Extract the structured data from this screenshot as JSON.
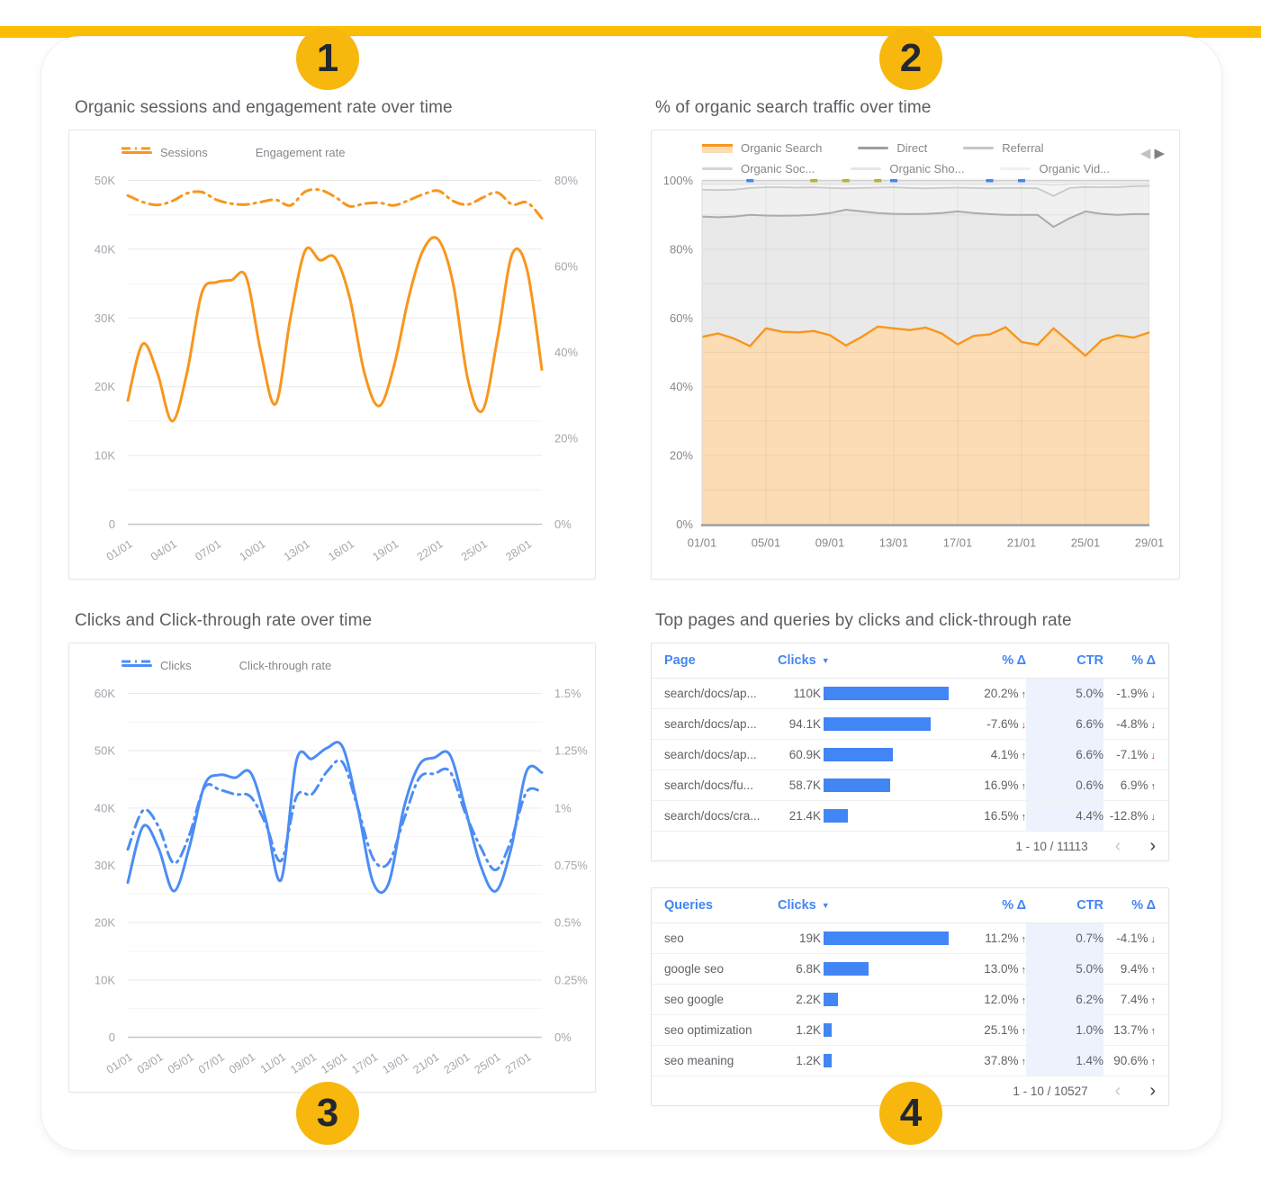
{
  "badges": [
    "1",
    "2",
    "3",
    "4"
  ],
  "colors": {
    "accent_bar_yellow": "#FCBE03",
    "badge_yellow": "#F8B70D",
    "orange": "#F8961D",
    "orange_fill": "#FBDCB5",
    "blue": "#4285F4",
    "line_blue": "#4C8DF5",
    "green_up": "#188038",
    "red_down": "#D93025",
    "ctr_band": "#EDF2FC"
  },
  "icons": {
    "sort_desc": "▼",
    "trend_up": "↑",
    "trend_down": "↓",
    "page_prev": "‹",
    "page_next": "›",
    "chart_prev": "◀",
    "chart_next": "▶"
  },
  "chart_data": [
    {
      "id": "sessions",
      "type": "line",
      "title": "Organic sessions and engagement rate over time",
      "legend": [
        {
          "label": "Sessions",
          "style": "solid"
        },
        {
          "label": "Engagement rate",
          "style": "dashdot"
        }
      ],
      "color": "#F8961D",
      "x_labels": [
        "01/01",
        "02/01",
        "03/01",
        "04/01",
        "05/01",
        "06/01",
        "07/01",
        "08/01",
        "09/01",
        "10/01",
        "11/01",
        "12/01",
        "13/01",
        "14/01",
        "15/01",
        "16/01",
        "17/01",
        "18/01",
        "19/01",
        "20/01",
        "21/01",
        "22/01",
        "23/01",
        "24/01",
        "25/01",
        "26/01",
        "27/01",
        "28/01",
        "29/01"
      ],
      "x_ticks": {
        "labels": [
          "01/01",
          "04/01",
          "07/01",
          "10/01",
          "13/01",
          "16/01",
          "19/01",
          "22/01",
          "25/01",
          "28/01"
        ],
        "days": [
          1,
          4,
          7,
          10,
          13,
          16,
          19,
          22,
          25,
          28
        ]
      },
      "left_axis": {
        "labels": [
          "0",
          "10K",
          "20K",
          "30K",
          "40K",
          "50K"
        ],
        "values": [
          0,
          10000,
          20000,
          30000,
          40000,
          50000
        ],
        "max": 50000
      },
      "right_axis": {
        "labels": [
          "0%",
          "20%",
          "40%",
          "60%",
          "80%"
        ],
        "values": [
          0,
          20,
          40,
          60,
          80
        ],
        "max": 80
      },
      "series": [
        {
          "name": "Sessions",
          "axis": "left",
          "style": "solid",
          "values": [
            18000,
            26200,
            22000,
            15000,
            22000,
            33600,
            35200,
            35500,
            36000,
            25000,
            17500,
            30000,
            39800,
            38400,
            38800,
            33000,
            22000,
            17200,
            23000,
            33000,
            40000,
            41400,
            35000,
            21000,
            16600,
            27000,
            39300,
            37000,
            22500
          ]
        },
        {
          "name": "Engagement rate",
          "axis": "right",
          "style": "dashdot",
          "values": [
            76.5,
            75.0,
            74.3,
            75.2,
            77.0,
            77.3,
            75.5,
            74.6,
            74.4,
            75.0,
            75.5,
            74.2,
            77.4,
            77.8,
            76.2,
            74.0,
            74.6,
            74.8,
            74.2,
            75.4,
            76.8,
            77.6,
            75.2,
            74.4,
            76.0,
            77.2,
            74.4,
            74.9,
            71.2
          ]
        }
      ]
    },
    {
      "id": "traffic",
      "type": "area_stacked_percent",
      "title": "% of organic search traffic over time",
      "legend": [
        {
          "label": "Organic Search",
          "color": "#F8961D",
          "fill": "#FBDCB5"
        },
        {
          "label": "Direct",
          "color": "#9E9E9E"
        },
        {
          "label": "Referral",
          "color": "#C6C6C6"
        },
        {
          "label": "Organic Soc...",
          "color": "#D4D4D4"
        },
        {
          "label": "Organic Sho...",
          "color": "#E6E6E6"
        },
        {
          "label": "Organic Vid...",
          "color": "#F0F0F0"
        }
      ],
      "x_labels": [
        "01/01",
        "02/01",
        "03/01",
        "04/01",
        "05/01",
        "06/01",
        "07/01",
        "08/01",
        "09/01",
        "10/01",
        "11/01",
        "12/01",
        "13/01",
        "14/01",
        "15/01",
        "16/01",
        "17/01",
        "18/01",
        "19/01",
        "20/01",
        "21/01",
        "22/01",
        "23/01",
        "24/01",
        "25/01",
        "26/01",
        "27/01",
        "28/01",
        "29/01"
      ],
      "x_ticks": {
        "labels": [
          "01/01",
          "05/01",
          "09/01",
          "13/01",
          "17/01",
          "21/01",
          "25/01",
          "29/01"
        ],
        "days": [
          1,
          5,
          9,
          13,
          17,
          21,
          25,
          29
        ]
      },
      "y_axis": {
        "labels": [
          "0%",
          "20%",
          "40%",
          "60%",
          "80%",
          "100%"
        ],
        "values": [
          0,
          20,
          40,
          60,
          80,
          100
        ],
        "max": 100
      },
      "series": [
        {
          "name": "Organic Search",
          "line": "#F8961D",
          "fill": "#FBDCB5",
          "width": 2.4,
          "values": [
            54.5,
            55.5,
            54.0,
            51.8,
            57.0,
            56.0,
            55.8,
            56.2,
            55.0,
            52.0,
            54.5,
            57.5,
            57.0,
            56.5,
            57.2,
            55.5,
            52.3,
            54.8,
            55.2,
            57.3,
            53.0,
            52.2,
            57.0,
            53.0,
            49.0,
            53.5,
            55.0,
            54.3,
            55.8
          ]
        },
        {
          "name": "Direct",
          "line": "#ABABAB",
          "fill": "#E9E9E9",
          "width": 2,
          "values": [
            89.5,
            89.3,
            89.5,
            90.0,
            89.8,
            89.7,
            89.8,
            90.0,
            90.5,
            91.5,
            91.0,
            90.5,
            90.3,
            90.2,
            90.3,
            90.5,
            91.0,
            90.5,
            90.2,
            90.0,
            90.0,
            90.0,
            86.5,
            89.0,
            91.0,
            90.3,
            90.0,
            90.2,
            90.2
          ]
        },
        {
          "name": "Referral",
          "line": "#C9C9C9",
          "fill": "#F0F0F0",
          "width": 1.8,
          "values": [
            97.3,
            97.2,
            97.3,
            97.8,
            98.0,
            98.0,
            97.9,
            98.0,
            97.8,
            97.7,
            97.8,
            97.9,
            98.0,
            97.8,
            97.7,
            97.8,
            97.9,
            97.8,
            97.7,
            97.8,
            97.8,
            97.7,
            95.5,
            97.8,
            98.1,
            98.0,
            98.1,
            98.3,
            98.4
          ]
        },
        {
          "name": "Organic Soc...",
          "line": "#DCDCDC",
          "fill": "#F4F4F4",
          "width": 1.4,
          "values": [
            99.0,
            99.0,
            99.0,
            99.0,
            99.0,
            99.0,
            99.0,
            99.0,
            99.0,
            99.0,
            99.0,
            99.0,
            99.0,
            99.0,
            99.0,
            99.0,
            99.0,
            99.0,
            99.0,
            99.0,
            99.0,
            99.0,
            98.7,
            99.0,
            99.0,
            99.0,
            99.0,
            99.0,
            99.0
          ]
        },
        {
          "name": "Organic Sho...",
          "line": "#E7E7E7",
          "fill": "#F8F8F8",
          "width": 1.4,
          "values": [
            99.6,
            99.6,
            99.6,
            99.6,
            99.6,
            99.6,
            99.6,
            99.6,
            99.6,
            99.6,
            99.6,
            99.6,
            99.6,
            99.6,
            99.6,
            99.6,
            99.6,
            99.6,
            99.6,
            99.6,
            99.6,
            99.6,
            99.5,
            99.6,
            99.6,
            99.6,
            99.6,
            99.6,
            99.6
          ]
        },
        {
          "name": "Organic Vid...",
          "line": "#CFCFCF",
          "fill": "#FBFBFB",
          "width": 1.4,
          "values": [
            100,
            100,
            100,
            100,
            100,
            100,
            100,
            100,
            100,
            100,
            100,
            100,
            100,
            100,
            100,
            100,
            100,
            100,
            100,
            100,
            100,
            100,
            100,
            100,
            100,
            100,
            100,
            100,
            100
          ]
        }
      ],
      "markers": [
        {
          "day": 4,
          "color": "#4285F4"
        },
        {
          "day": 13,
          "color": "#4285F4"
        },
        {
          "day": 19,
          "color": "#4285F4"
        },
        {
          "day": 21,
          "color": "#4285F4"
        },
        {
          "day": 8,
          "color": "#B7B32E"
        },
        {
          "day": 10,
          "color": "#B7B32E"
        },
        {
          "day": 12,
          "color": "#B7B32E"
        }
      ]
    },
    {
      "id": "clicks",
      "type": "line",
      "title": "Clicks and Click-through rate over time",
      "legend": [
        {
          "label": "Clicks",
          "style": "solid"
        },
        {
          "label": "Click-through rate",
          "style": "dashdot"
        }
      ],
      "color": "#4C8DF5",
      "x_labels": [
        "01/01",
        "02/01",
        "03/01",
        "04/01",
        "05/01",
        "06/01",
        "07/01",
        "08/01",
        "09/01",
        "10/01",
        "11/01",
        "12/01",
        "13/01",
        "14/01",
        "15/01",
        "16/01",
        "17/01",
        "18/01",
        "19/01",
        "20/01",
        "21/01",
        "22/01",
        "23/01",
        "24/01",
        "25/01",
        "26/01",
        "27/01",
        "28/01"
      ],
      "x_ticks": {
        "labels": [
          "01/01",
          "03/01",
          "05/01",
          "07/01",
          "09/01",
          "11/01",
          "13/01",
          "15/01",
          "17/01",
          "19/01",
          "21/01",
          "23/01",
          "25/01",
          "27/01"
        ],
        "days": [
          1,
          3,
          5,
          7,
          9,
          11,
          13,
          15,
          17,
          19,
          21,
          23,
          25,
          27
        ]
      },
      "left_axis": {
        "labels": [
          "0",
          "10K",
          "20K",
          "30K",
          "40K",
          "50K",
          "60K"
        ],
        "values": [
          0,
          10000,
          20000,
          30000,
          40000,
          50000,
          60000
        ],
        "max": 60000
      },
      "right_axis": {
        "labels": [
          "0%",
          "0.25%",
          "0.5%",
          "0.75%",
          "1%",
          "1.25%",
          "1.5%"
        ],
        "values": [
          0,
          0.25,
          0.5,
          0.75,
          1,
          1.25,
          1.5
        ],
        "max": 1.5
      },
      "series": [
        {
          "name": "Clicks",
          "axis": "left",
          "style": "solid",
          "values": [
            27000,
            36800,
            33000,
            25500,
            33000,
            44000,
            45800,
            45300,
            46200,
            38000,
            27500,
            48300,
            48600,
            50500,
            50700,
            40000,
            27000,
            26800,
            40000,
            47500,
            48800,
            49300,
            40000,
            30000,
            25500,
            33000,
            46400,
            46200
          ]
        },
        {
          "name": "Click-through rate",
          "axis": "right",
          "style": "dashdot",
          "values": [
            0.82,
            0.99,
            0.92,
            0.76,
            0.88,
            1.09,
            1.08,
            1.06,
            1.05,
            0.93,
            0.77,
            1.05,
            1.06,
            1.16,
            1.2,
            1.0,
            0.78,
            0.76,
            0.95,
            1.13,
            1.15,
            1.16,
            0.98,
            0.83,
            0.73,
            0.86,
            1.07,
            1.07
          ]
        }
      ]
    }
  ],
  "tables": {
    "section_title": "Top pages and queries by clicks and click-through rate",
    "list": [
      {
        "id": "pages",
        "columns": [
          "Page",
          "Clicks",
          "% Δ",
          "CTR",
          "% Δ"
        ],
        "sorted_column": "Clicks",
        "max_clicks": 110000,
        "rows": [
          {
            "label": "search/docs/ap...",
            "clicks_label": "110K",
            "clicks": 110000,
            "delta_clicks": "20.2%",
            "delta_clicks_dir": "up",
            "ctr": "5.0%",
            "delta_ctr": "-1.9%",
            "delta_ctr_dir": "down"
          },
          {
            "label": "search/docs/ap...",
            "clicks_label": "94.1K",
            "clicks": 94100,
            "delta_clicks": "-7.6%",
            "delta_clicks_dir": "down",
            "ctr": "6.6%",
            "delta_ctr": "-4.8%",
            "delta_ctr_dir": "down"
          },
          {
            "label": "search/docs/ap...",
            "clicks_label": "60.9K",
            "clicks": 60900,
            "delta_clicks": "4.1%",
            "delta_clicks_dir": "up",
            "ctr": "6.6%",
            "delta_ctr": "-7.1%",
            "delta_ctr_dir": "down"
          },
          {
            "label": "search/docs/fu...",
            "clicks_label": "58.7K",
            "clicks": 58700,
            "delta_clicks": "16.9%",
            "delta_clicks_dir": "up",
            "ctr": "0.6%",
            "delta_ctr": "6.9%",
            "delta_ctr_dir": "up"
          },
          {
            "label": "search/docs/cra...",
            "clicks_label": "21.4K",
            "clicks": 21400,
            "delta_clicks": "16.5%",
            "delta_clicks_dir": "up",
            "ctr": "4.4%",
            "delta_ctr": "-12.8%",
            "delta_ctr_dir": "down"
          }
        ],
        "pagination": "1 - 10 / 11113"
      },
      {
        "id": "queries",
        "columns": [
          "Queries",
          "Clicks",
          "% Δ",
          "CTR",
          "% Δ"
        ],
        "sorted_column": "Clicks",
        "max_clicks": 19000,
        "rows": [
          {
            "label": "seo",
            "clicks_label": "19K",
            "clicks": 19000,
            "delta_clicks": "11.2%",
            "delta_clicks_dir": "up",
            "ctr": "0.7%",
            "delta_ctr": "-4.1%",
            "delta_ctr_dir": "down"
          },
          {
            "label": "google seo",
            "clicks_label": "6.8K",
            "clicks": 6800,
            "delta_clicks": "13.0%",
            "delta_clicks_dir": "up",
            "ctr": "5.0%",
            "delta_ctr": "9.4%",
            "delta_ctr_dir": "up"
          },
          {
            "label": "seo google",
            "clicks_label": "2.2K",
            "clicks": 2200,
            "delta_clicks": "12.0%",
            "delta_clicks_dir": "up",
            "ctr": "6.2%",
            "delta_ctr": "7.4%",
            "delta_ctr_dir": "up"
          },
          {
            "label": "seo optimization",
            "clicks_label": "1.2K",
            "clicks": 1200,
            "delta_clicks": "25.1%",
            "delta_clicks_dir": "up",
            "ctr": "1.0%",
            "delta_ctr": "13.7%",
            "delta_ctr_dir": "up"
          },
          {
            "label": "seo meaning",
            "clicks_label": "1.2K",
            "clicks": 1200,
            "delta_clicks": "37.8%",
            "delta_clicks_dir": "up",
            "ctr": "1.4%",
            "delta_ctr": "90.6%",
            "delta_ctr_dir": "up"
          }
        ],
        "pagination": "1 - 10 / 10527"
      }
    ]
  }
}
